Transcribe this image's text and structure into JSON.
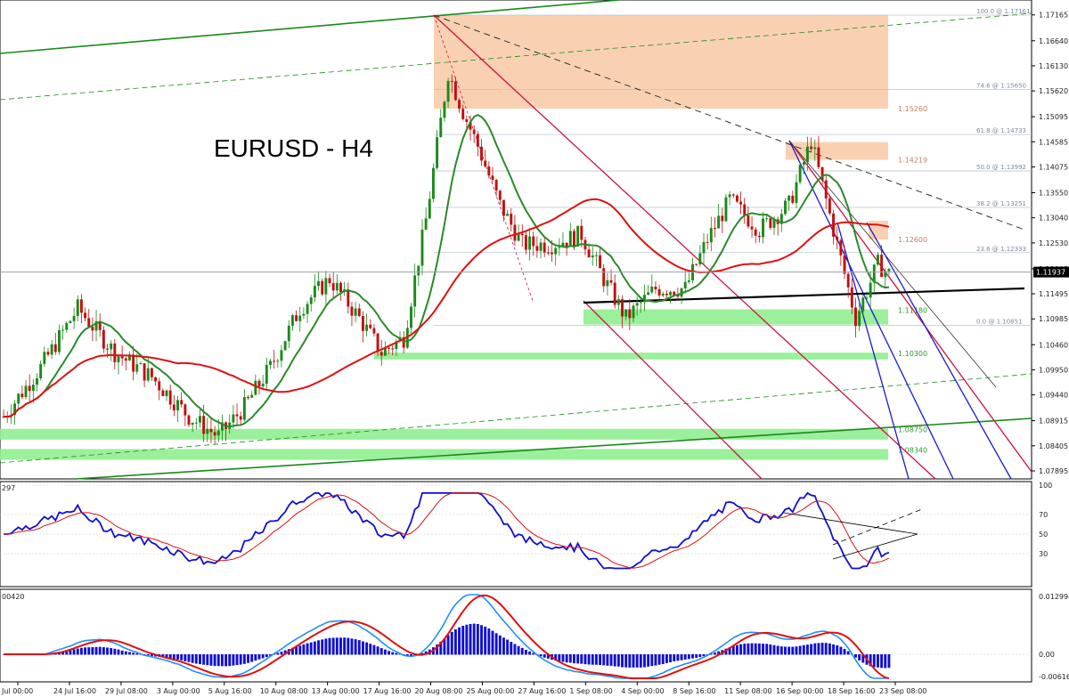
{
  "chart_data": {
    "type": "line",
    "title": "EURUSD - H4",
    "price_axis": {
      "ticks": [
        "1.17165",
        "1.16640",
        "1.16130",
        "1.15620",
        "1.15095",
        "1.14585",
        "1.14075",
        "1.13550",
        "1.13040",
        "1.12530",
        "1.12005",
        "1.11495",
        "1.10985",
        "1.10460",
        "1.09950",
        "1.09440",
        "1.08915",
        "1.08405",
        "1.07895"
      ],
      "ylim": [
        1.0775,
        1.1745
      ],
      "current_price": "1.11937"
    },
    "x_axis": {
      "labels": [
        "Jul 00:00",
        "24 Jul 16:00",
        "29 Jul 08:00",
        "3 Aug 00:00",
        "5 Aug 16:00",
        "10 Aug 08:00",
        "13 Aug 00:00",
        "17 Aug 16:00",
        "20 Aug 08:00",
        "25 Aug 00:00",
        "27 Aug 16:00",
        "1 Sep 08:00",
        "4 Sep 00:00",
        "8 Sep 16:00",
        "11 Sep 08:00",
        "16 Sep 00:00",
        "18 Sep 16:00",
        "23 Sep 08:00"
      ]
    },
    "fib_levels": [
      {
        "label": "100.0 @ 1.17161",
        "price": 1.17161
      },
      {
        "label": "74.6 @ 1.15650",
        "price": 1.1565
      },
      {
        "label": "61.8 @ 1.14733",
        "price": 1.14733
      },
      {
        "label": "50.0 @ 1.13992",
        "price": 1.13992
      },
      {
        "label": "38.2 @ 1.13251",
        "price": 1.13251
      },
      {
        "label": "23.6 @ 1.12333",
        "price": 1.12333
      },
      {
        "label": "0.0 @ 1.10851",
        "price": 1.10851
      }
    ],
    "resistance_zones": [
      {
        "label": "1.15260",
        "top": 1.1716,
        "bottom": 1.1526
      },
      {
        "label": "1.14219",
        "top": 1.1458,
        "bottom": 1.1422
      },
      {
        "label": "1.12600",
        "top": 1.1298,
        "bottom": 1.126
      }
    ],
    "support_zones": [
      {
        "label": "1.11180",
        "top": 1.1118,
        "bottom": 1.1087
      },
      {
        "label": "1.10300",
        "top": 1.103,
        "bottom": 1.1016
      },
      {
        "label": "1.08750",
        "top": 1.0875,
        "bottom": 1.0853
      },
      {
        "label": "1.08340",
        "top": 1.0834,
        "bottom": 1.0812
      }
    ],
    "rsi": {
      "label": "297",
      "ticks": [
        "100",
        "70",
        "50",
        "30"
      ]
    },
    "macd": {
      "label": "00420",
      "ticks": [
        "0.012994",
        "0.00",
        "-0.006161"
      ]
    }
  }
}
